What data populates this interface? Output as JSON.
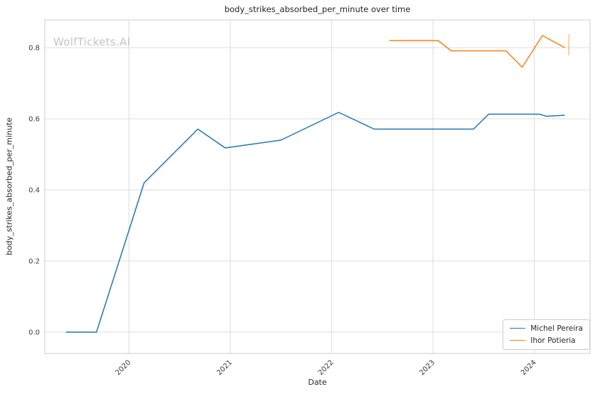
{
  "watermark": {
    "text": "WolfTickets.AI"
  },
  "chart_data": {
    "type": "line",
    "title": "body_strikes_absorbed_per_minute over time",
    "xlabel": "Date",
    "ylabel": "body_strikes_absorbed_per_minute",
    "xlim": [
      2019.17,
      2024.55
    ],
    "ylim": [
      -0.06,
      0.878
    ],
    "x_ticks": [
      2020,
      2021,
      2022,
      2023,
      2024
    ],
    "y_ticks": [
      0.0,
      0.2,
      0.4,
      0.6,
      0.8
    ],
    "grid": true,
    "grid_color": "#dcdcdc",
    "spine_color": "#cccccc",
    "legend_position": "lower right",
    "series": [
      {
        "name": "Michel Pereira",
        "color": "#1f77b4",
        "x": [
          2019.38,
          2019.68,
          2020.15,
          2020.68,
          2020.95,
          2021.5,
          2022.07,
          2022.42,
          2023.4,
          2023.55,
          2024.05,
          2024.12,
          2024.3
        ],
        "y": [
          0.0,
          0.0,
          0.42,
          0.571,
          0.518,
          0.54,
          0.618,
          0.571,
          0.571,
          0.613,
          0.613,
          0.607,
          0.61
        ]
      },
      {
        "name": "Ihor Potieria",
        "color": "#ff7f0e",
        "x": [
          2022.57,
          2023.05,
          2023.18,
          2023.72,
          2023.88,
          2024.08,
          2024.3
        ],
        "y": [
          0.82,
          0.82,
          0.791,
          0.791,
          0.745,
          0.834,
          0.8
        ],
        "error_bar": {
          "x": 2024.34,
          "y_low": 0.778,
          "y_high": 0.838
        }
      }
    ]
  }
}
